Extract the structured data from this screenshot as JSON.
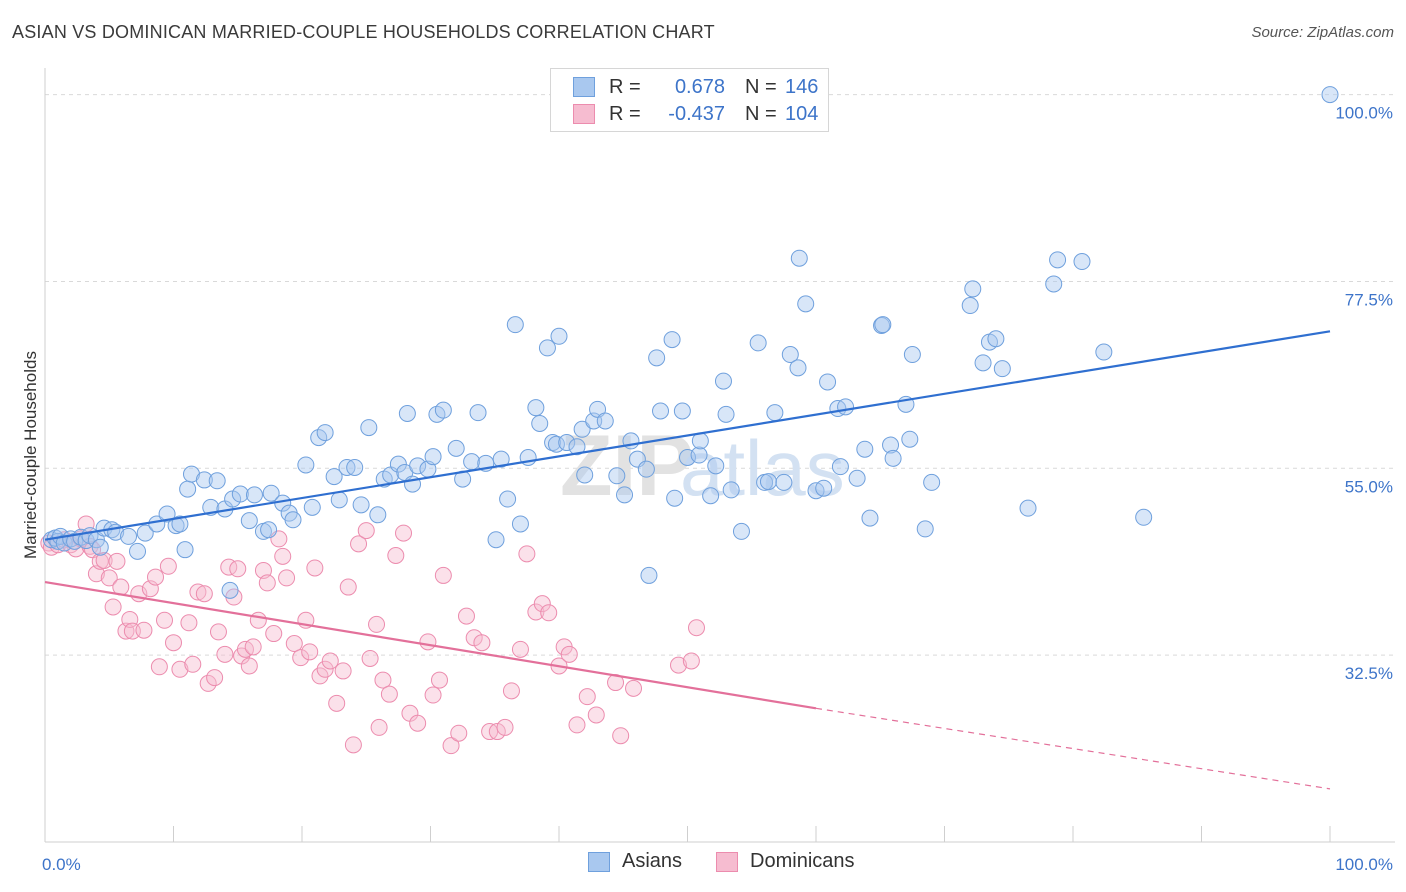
{
  "title": "ASIAN VS DOMINICAN MARRIED-COUPLE HOUSEHOLDS CORRELATION CHART",
  "source": "Source: ZipAtlas.com",
  "watermark": "ZIPatlas",
  "legend": {
    "rows": [
      {
        "r_label": "R =",
        "r_value": "0.678",
        "n_label": "N =",
        "n_value": "146"
      },
      {
        "r_label": "R =",
        "r_value": "-0.437",
        "n_label": "N =",
        "n_value": "104"
      }
    ]
  },
  "bottom_legend": [
    "Asians",
    "Dominicans"
  ],
  "colors": {
    "asian_fill": "#a9c8ef",
    "asian_stroke": "#6fa0dd",
    "asian_line": "#2f6fd0",
    "dom_fill": "#f6bcd0",
    "dom_stroke": "#ec8cae",
    "dom_line": "#e3709a",
    "tick": "#3d74c9"
  },
  "chart_data": {
    "type": "scatter",
    "title": "ASIAN VS DOMINICAN MARRIED-COUPLE HOUSEHOLDS CORRELATION CHART",
    "xlabel": "",
    "ylabel": "Married-couple Households",
    "xlim": [
      0,
      100
    ],
    "ylim": [
      10,
      102
    ],
    "x_tick_labels": [
      "0.0%",
      "100.0%"
    ],
    "y_ticks": [
      32.5,
      55.0,
      77.5,
      100.0
    ],
    "y_tick_labels": [
      "32.5%",
      "55.0%",
      "77.5%",
      "100.0%"
    ],
    "series": [
      {
        "name": "Asians",
        "R": 0.678,
        "N": 146,
        "trend": {
          "x0": 0,
          "y0": 46.4,
          "x1": 100,
          "y1": 71.5
        },
        "points": [
          [
            0.5,
            46.4
          ],
          [
            0.8,
            46.6
          ],
          [
            1,
            46.2
          ],
          [
            1.2,
            46.8
          ],
          [
            1.5,
            46
          ],
          [
            2,
            46.5
          ],
          [
            2.3,
            46.2
          ],
          [
            2.8,
            46.7
          ],
          [
            3.2,
            46.3
          ],
          [
            3.5,
            46.9
          ],
          [
            4,
            46.4
          ],
          [
            4.3,
            45.5
          ],
          [
            4.6,
            47.8
          ],
          [
            5.2,
            47.6
          ],
          [
            5.5,
            47.3
          ],
          [
            6.5,
            46.8
          ],
          [
            7.2,
            45
          ],
          [
            7.8,
            47.2
          ],
          [
            8.7,
            48.3
          ],
          [
            9.5,
            49.5
          ],
          [
            10.2,
            48.1
          ],
          [
            10.5,
            48.3
          ],
          [
            10.9,
            45.2
          ],
          [
            11.1,
            52.5
          ],
          [
            11.4,
            54.3
          ],
          [
            12.4,
            53.6
          ],
          [
            12.9,
            50.3
          ],
          [
            13.4,
            53.5
          ],
          [
            14,
            50.1
          ],
          [
            14.4,
            40.3
          ],
          [
            14.6,
            51.3
          ],
          [
            15.2,
            51.9
          ],
          [
            15.9,
            48.7
          ],
          [
            16.3,
            51.8
          ],
          [
            17,
            47.4
          ],
          [
            17.4,
            47.6
          ],
          [
            17.6,
            52
          ],
          [
            18.5,
            50.8
          ],
          [
            19,
            49.6
          ],
          [
            19.3,
            48.8
          ],
          [
            20.3,
            55.4
          ],
          [
            20.8,
            50.3
          ],
          [
            21.3,
            58.7
          ],
          [
            21.8,
            59.3
          ],
          [
            22.5,
            54
          ],
          [
            22.9,
            51.2
          ],
          [
            23.5,
            55.1
          ],
          [
            24.1,
            55.1
          ],
          [
            24.6,
            50.6
          ],
          [
            25.2,
            59.9
          ],
          [
            25.9,
            49.4
          ],
          [
            26.4,
            53.7
          ],
          [
            26.9,
            54.2
          ],
          [
            27.5,
            55.5
          ],
          [
            28,
            54.5
          ],
          [
            28.2,
            61.6
          ],
          [
            28.6,
            53.1
          ],
          [
            29,
            55.3
          ],
          [
            29.8,
            54.9
          ],
          [
            30.2,
            56.4
          ],
          [
            30.5,
            61.5
          ],
          [
            31,
            62
          ],
          [
            32,
            57.4
          ],
          [
            32.5,
            53.7
          ],
          [
            33.2,
            55.8
          ],
          [
            33.7,
            61.7
          ],
          [
            34.3,
            55.6
          ],
          [
            35.1,
            46.4
          ],
          [
            35.5,
            56.1
          ],
          [
            36,
            51.3
          ],
          [
            36.6,
            72.3
          ],
          [
            37,
            48.3
          ],
          [
            37.6,
            56.3
          ],
          [
            38.2,
            62.3
          ],
          [
            38.5,
            60.4
          ],
          [
            39.1,
            69.5
          ],
          [
            39.5,
            58.1
          ],
          [
            39.8,
            57.9
          ],
          [
            40,
            70.9
          ],
          [
            40.6,
            58.1
          ],
          [
            41.4,
            57.6
          ],
          [
            41.8,
            59.7
          ],
          [
            42,
            54.2
          ],
          [
            42.7,
            60.7
          ],
          [
            43,
            62.1
          ],
          [
            43.6,
            60.7
          ],
          [
            44.5,
            54.1
          ],
          [
            45.1,
            51.8
          ],
          [
            45.6,
            58.3
          ],
          [
            46.1,
            56.1
          ],
          [
            46.8,
            54.9
          ],
          [
            47,
            42.1
          ],
          [
            47.6,
            68.3
          ],
          [
            47.9,
            61.9
          ],
          [
            48.8,
            70.5
          ],
          [
            49,
            51.4
          ],
          [
            49.6,
            61.9
          ],
          [
            50,
            56.3
          ],
          [
            50.9,
            56.6
          ],
          [
            51,
            58.3
          ],
          [
            51.8,
            51.7
          ],
          [
            52.2,
            55.3
          ],
          [
            52.8,
            65.5
          ],
          [
            53,
            61.5
          ],
          [
            53.4,
            52.4
          ],
          [
            54.2,
            47.4
          ],
          [
            55.5,
            70.1
          ],
          [
            56,
            53.3
          ],
          [
            56.3,
            53.4
          ],
          [
            56.8,
            61.7
          ],
          [
            57.5,
            53.3
          ],
          [
            58,
            68.7
          ],
          [
            58.6,
            67.1
          ],
          [
            58.7,
            80.3
          ],
          [
            59.2,
            74.8
          ],
          [
            60,
            52.3
          ],
          [
            60.6,
            52.6
          ],
          [
            60.9,
            65.4
          ],
          [
            61.7,
            62.2
          ],
          [
            61.9,
            55.2
          ],
          [
            62.3,
            62.4
          ],
          [
            63.2,
            53.8
          ],
          [
            63.8,
            57.3
          ],
          [
            64.2,
            49
          ],
          [
            65.1,
            72.2
          ],
          [
            65.2,
            72.3
          ],
          [
            65.8,
            57.8
          ],
          [
            66,
            56.2
          ],
          [
            67,
            62.7
          ],
          [
            67.3,
            58.5
          ],
          [
            67.5,
            68.7
          ],
          [
            68.5,
            47.7
          ],
          [
            69,
            53.3
          ],
          [
            72,
            74.6
          ],
          [
            72.2,
            76.6
          ],
          [
            73,
            67.7
          ],
          [
            73.5,
            70.2
          ],
          [
            74,
            70.6
          ],
          [
            74.5,
            67
          ],
          [
            76.5,
            50.2
          ],
          [
            78.5,
            77.2
          ],
          [
            78.8,
            80.1
          ],
          [
            80.7,
            79.9
          ],
          [
            82.4,
            69
          ],
          [
            85.5,
            49.1
          ],
          [
            100,
            100
          ]
        ]
      },
      {
        "name": "Dominicans",
        "R": -0.437,
        "N": 104,
        "trend": {
          "x0": 0,
          "y0": 41.3,
          "x1": 60,
          "y1": 26.1
        },
        "trend_dashed": {
          "x0": 60,
          "y0": 26.1,
          "x1": 100,
          "y1": 16.4
        },
        "points": [
          [
            0.3,
            46
          ],
          [
            0.5,
            45.5
          ],
          [
            1,
            45.8
          ],
          [
            1.5,
            46.4
          ],
          [
            2,
            45.8
          ],
          [
            2.4,
            45.3
          ],
          [
            2.8,
            46.5
          ],
          [
            3.2,
            48.3
          ],
          [
            3.5,
            45.6
          ],
          [
            3.7,
            45.2
          ],
          [
            4,
            42.3
          ],
          [
            4.3,
            43.8
          ],
          [
            4.6,
            43.9
          ],
          [
            5,
            41.8
          ],
          [
            5.3,
            38.3
          ],
          [
            5.6,
            43.8
          ],
          [
            5.9,
            40.7
          ],
          [
            6.3,
            35.4
          ],
          [
            6.6,
            36.8
          ],
          [
            6.8,
            35.4
          ],
          [
            7.3,
            39.9
          ],
          [
            7.7,
            35.5
          ],
          [
            8.2,
            40.5
          ],
          [
            8.6,
            41.9
          ],
          [
            8.9,
            31.1
          ],
          [
            9.3,
            36.7
          ],
          [
            9.6,
            43.2
          ],
          [
            10,
            34
          ],
          [
            10.5,
            30.8
          ],
          [
            11.2,
            36.4
          ],
          [
            11.5,
            31.4
          ],
          [
            11.9,
            40.1
          ],
          [
            12.4,
            39.9
          ],
          [
            12.7,
            29.1
          ],
          [
            13.2,
            29.8
          ],
          [
            13.5,
            35.3
          ],
          [
            14,
            32.6
          ],
          [
            14.3,
            43.1
          ],
          [
            14.7,
            39.5
          ],
          [
            15,
            42.9
          ],
          [
            15.3,
            32.4
          ],
          [
            15.6,
            33.2
          ],
          [
            15.9,
            31.2
          ],
          [
            16.2,
            33.5
          ],
          [
            16.6,
            36.7
          ],
          [
            17,
            42.7
          ],
          [
            17.3,
            41.2
          ],
          [
            17.8,
            35.1
          ],
          [
            18.2,
            46.5
          ],
          [
            18.5,
            44.4
          ],
          [
            18.8,
            41.8
          ],
          [
            19.4,
            33.9
          ],
          [
            19.9,
            32.2
          ],
          [
            20.3,
            36.7
          ],
          [
            20.6,
            32.9
          ],
          [
            21,
            43
          ],
          [
            21.4,
            30
          ],
          [
            21.8,
            30.8
          ],
          [
            22.2,
            31.8
          ],
          [
            22.7,
            26.7
          ],
          [
            23.2,
            30.6
          ],
          [
            23.6,
            40.7
          ],
          [
            24,
            21.7
          ],
          [
            24.4,
            45.9
          ],
          [
            25,
            47.5
          ],
          [
            25.3,
            32.1
          ],
          [
            25.8,
            36.2
          ],
          [
            26,
            23.8
          ],
          [
            26.3,
            29.5
          ],
          [
            26.8,
            27.8
          ],
          [
            27.3,
            44.5
          ],
          [
            27.9,
            47.2
          ],
          [
            28.4,
            25.5
          ],
          [
            29,
            24.3
          ],
          [
            29.8,
            34.1
          ],
          [
            30.2,
            27.7
          ],
          [
            30.7,
            29.5
          ],
          [
            31,
            42.1
          ],
          [
            31.6,
            21.6
          ],
          [
            32.2,
            23.1
          ],
          [
            32.8,
            37.2
          ],
          [
            33.4,
            34.6
          ],
          [
            34,
            34
          ],
          [
            34.6,
            23.3
          ],
          [
            35.2,
            23.3
          ],
          [
            35.8,
            23.8
          ],
          [
            36.3,
            28.2
          ],
          [
            37,
            33.2
          ],
          [
            37.5,
            44.7
          ],
          [
            38.2,
            37.7
          ],
          [
            38.7,
            38.7
          ],
          [
            39.2,
            37.6
          ],
          [
            40,
            31.2
          ],
          [
            40.4,
            33.5
          ],
          [
            40.8,
            32.6
          ],
          [
            41.4,
            24.1
          ],
          [
            42.2,
            27.5
          ],
          [
            42.9,
            25.3
          ],
          [
            44.4,
            29.2
          ],
          [
            44.8,
            22.8
          ],
          [
            45.8,
            28.5
          ],
          [
            49.3,
            31.3
          ],
          [
            50.3,
            31.8
          ],
          [
            50.7,
            35.8
          ]
        ]
      }
    ]
  }
}
